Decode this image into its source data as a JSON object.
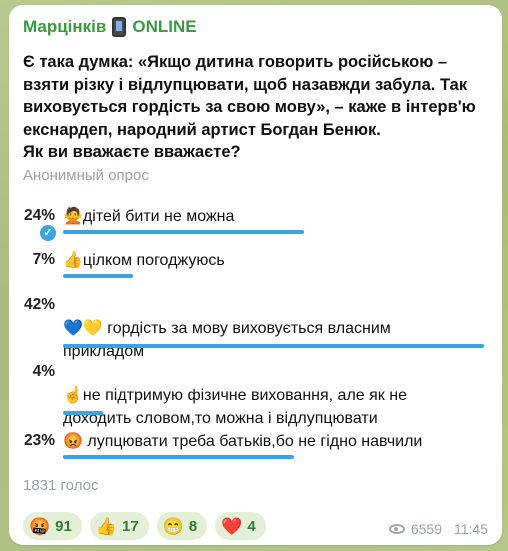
{
  "message": {
    "author": "Марцінків",
    "author_status": "ONLINE",
    "question": "Є така думка: «Якщо дитина говорить російською –\nвзяти різку і відлупцювати, щоб назавжди забула. Так\nвиховується гордість за свою мову», – каже в інтерв'ю\nекснардеп, народний артист Богдан Бенюк.\nЯк ви вважаєте вважаєте?",
    "poll_type": "Анонимный опрос",
    "options": [
      {
        "percent": "24%",
        "percent_value": 24,
        "emoji": "🙅",
        "text": "дітей бити не можна",
        "chosen": true
      },
      {
        "percent": "7%",
        "percent_value": 7,
        "emoji": "👍",
        "text": "цілком погоджуюсь",
        "chosen": false
      },
      {
        "percent": "42%",
        "percent_value": 42,
        "emoji": "💙💛",
        "text": " гордість за мову виховується власним\nприкладом",
        "chosen": false
      },
      {
        "percent": "4%",
        "percent_value": 4,
        "emoji": "☝️",
        "text": "не підтримую фізичне виховання, але як не\nдоходить словом,то можна і відлупцювати",
        "chosen": false
      },
      {
        "percent": "23%",
        "percent_value": 23,
        "emoji": "😡",
        "text": " лупцювати треба батьків,бо не гідно навчили",
        "chosen": false
      }
    ],
    "total_votes": "1831 голос",
    "reactions": [
      {
        "emoji": "🤬",
        "count": "91"
      },
      {
        "emoji": "👍",
        "count": "17"
      },
      {
        "emoji": "😁",
        "count": "8"
      },
      {
        "emoji": "❤️",
        "count": "4"
      }
    ],
    "views": "6559",
    "time": "11:45",
    "colors": {
      "accent": "#3aa3e3",
      "author": "#3a9b3e",
      "reaction_bg": "#e3efd6"
    }
  }
}
